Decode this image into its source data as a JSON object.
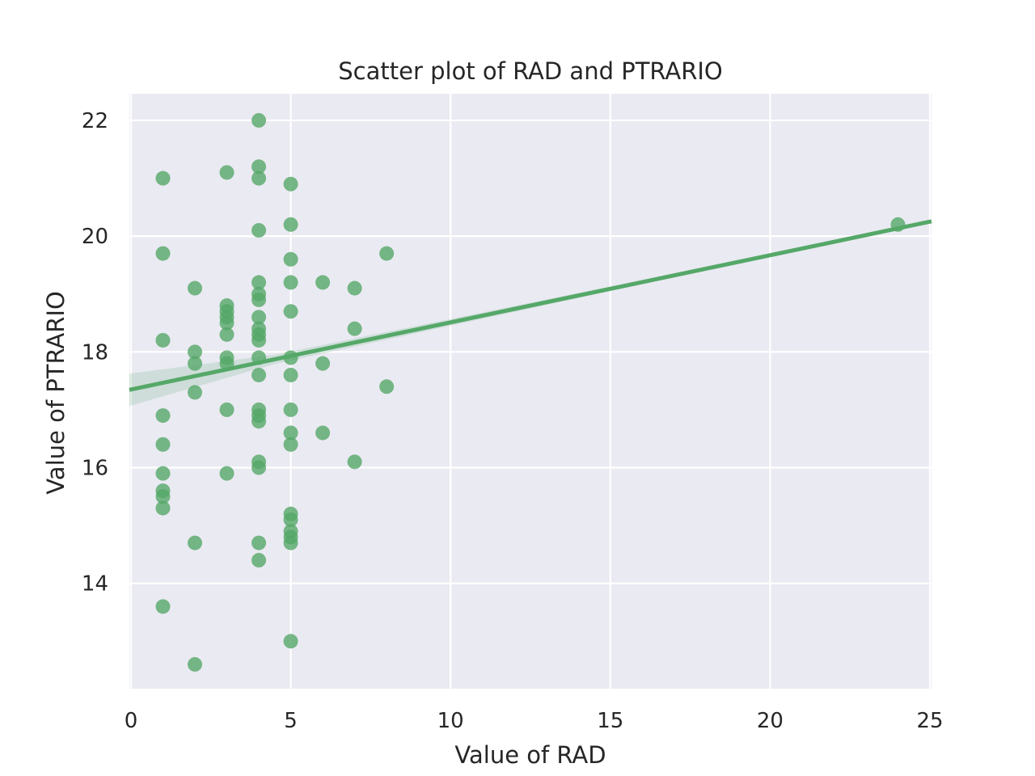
{
  "chart_data": {
    "type": "scatter",
    "title": "Scatter plot of RAD and PTRARIO",
    "xlabel": "Value of RAD",
    "ylabel": "Value of PTRARIO",
    "xlim": [
      -0.05,
      25.05
    ],
    "ylim": [
      12.18,
      22.46
    ],
    "xticks": [
      0,
      5,
      10,
      15,
      20,
      25
    ],
    "yticks": [
      14,
      16,
      18,
      20,
      22
    ],
    "grid": true,
    "colors": {
      "background": "#eaeaf2",
      "grid": "#ffffff",
      "points": "#55a868",
      "regression": "#55a868",
      "ci_band": "#55a868"
    },
    "series": [
      {
        "points": [
          [
            1,
            21.0
          ],
          [
            1,
            19.7
          ],
          [
            1,
            18.2
          ],
          [
            1,
            16.9
          ],
          [
            1,
            16.4
          ],
          [
            1,
            15.9
          ],
          [
            1,
            15.6
          ],
          [
            1,
            15.5
          ],
          [
            1,
            15.3
          ],
          [
            1,
            13.6
          ],
          [
            2,
            19.1
          ],
          [
            2,
            18.0
          ],
          [
            2,
            17.8
          ],
          [
            2,
            17.3
          ],
          [
            2,
            14.7
          ],
          [
            2,
            12.6
          ],
          [
            3,
            21.1
          ],
          [
            3,
            18.8
          ],
          [
            3,
            18.7
          ],
          [
            3,
            18.6
          ],
          [
            3,
            18.5
          ],
          [
            3,
            18.3
          ],
          [
            3,
            17.9
          ],
          [
            3,
            17.8
          ],
          [
            3,
            17.0
          ],
          [
            3,
            15.9
          ],
          [
            4,
            22.0
          ],
          [
            4,
            21.2
          ],
          [
            4,
            21.0
          ],
          [
            4,
            20.1
          ],
          [
            4,
            19.2
          ],
          [
            4,
            19.0
          ],
          [
            4,
            18.9
          ],
          [
            4,
            18.6
          ],
          [
            4,
            18.4
          ],
          [
            4,
            18.3
          ],
          [
            4,
            18.2
          ],
          [
            4,
            17.9
          ],
          [
            4,
            17.6
          ],
          [
            4,
            17.0
          ],
          [
            4,
            16.9
          ],
          [
            4,
            16.8
          ],
          [
            4,
            16.1
          ],
          [
            4,
            16.0
          ],
          [
            4,
            14.7
          ],
          [
            4,
            14.4
          ],
          [
            5,
            20.9
          ],
          [
            5,
            20.2
          ],
          [
            5,
            19.6
          ],
          [
            5,
            19.2
          ],
          [
            5,
            18.7
          ],
          [
            5,
            17.9
          ],
          [
            5,
            17.6
          ],
          [
            5,
            17.0
          ],
          [
            5,
            16.6
          ],
          [
            5,
            16.4
          ],
          [
            5,
            15.2
          ],
          [
            5,
            15.1
          ],
          [
            5,
            14.9
          ],
          [
            5,
            14.8
          ],
          [
            5,
            14.7
          ],
          [
            5,
            13.0
          ],
          [
            6,
            19.2
          ],
          [
            6,
            17.8
          ],
          [
            6,
            16.6
          ],
          [
            7,
            19.1
          ],
          [
            7,
            18.4
          ],
          [
            7,
            16.1
          ],
          [
            8,
            19.7
          ],
          [
            8,
            17.4
          ],
          [
            24,
            20.2
          ]
        ]
      }
    ],
    "regression": {
      "intercept": 17.35,
      "slope": 0.116,
      "ci_halfwidth_start": 0.28,
      "ci_halfwidth_mid": 0.08,
      "ci_halfwidth_end": 0.0
    }
  }
}
